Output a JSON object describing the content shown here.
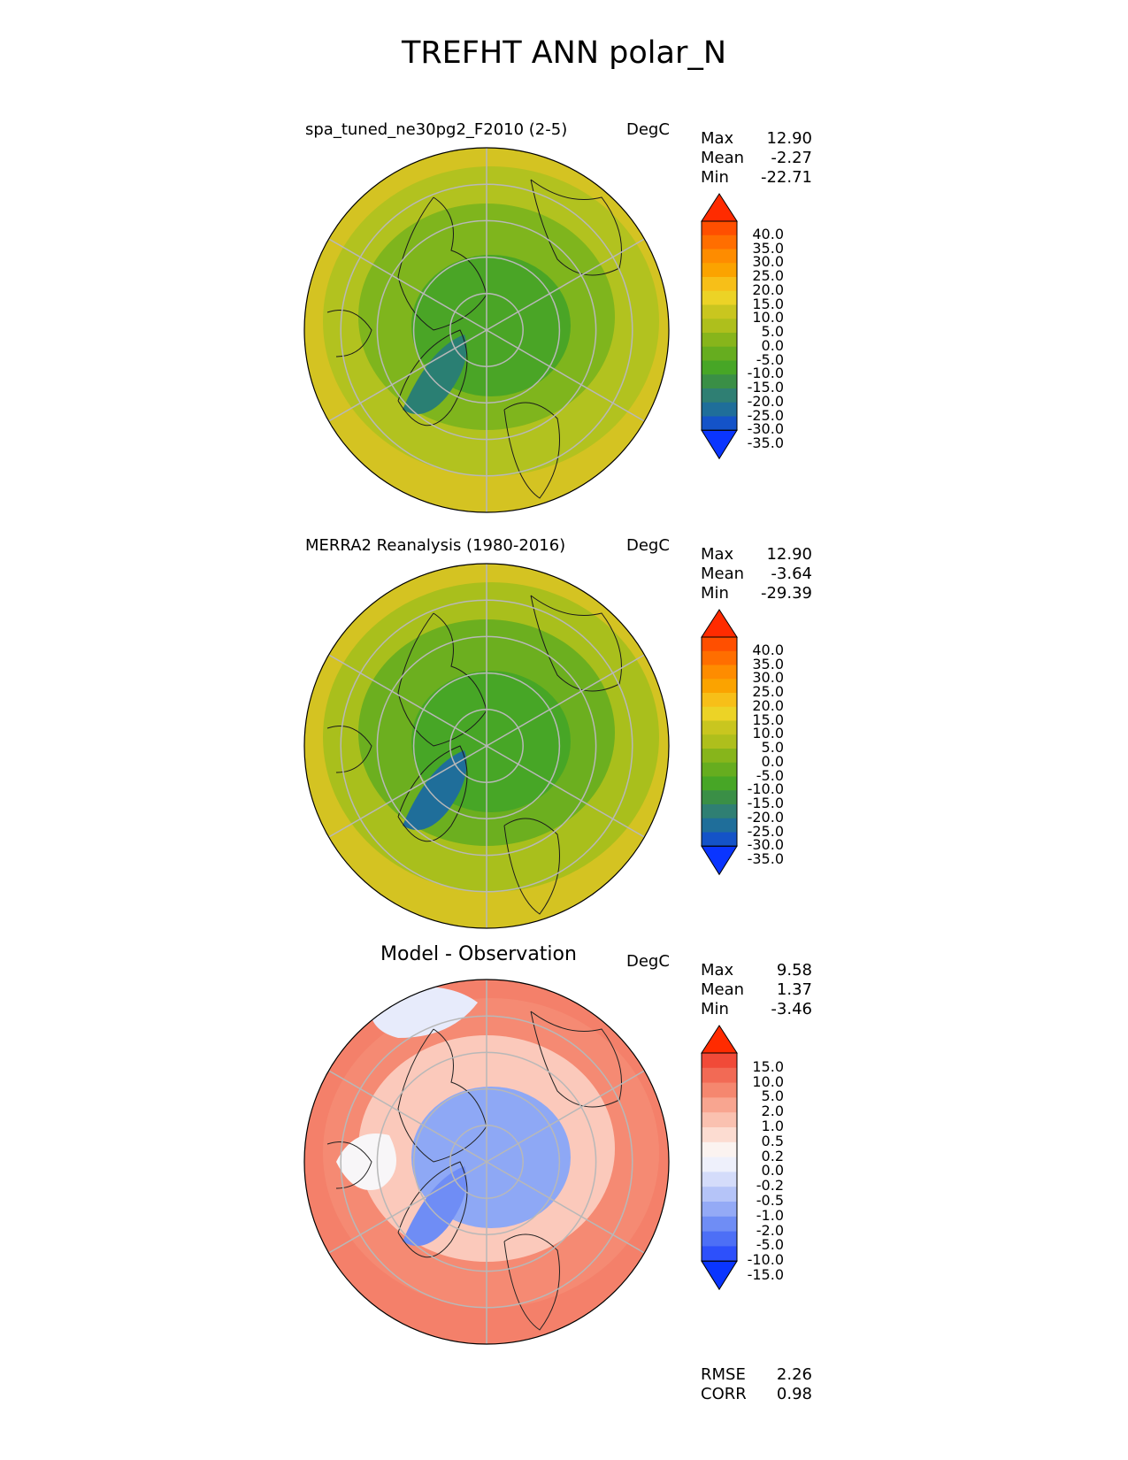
{
  "title": "TREFHT ANN polar_N",
  "panels": [
    {
      "id": "test",
      "title": "spa_tuned_ne30pg2_F2010 (2-5)",
      "units": "DegC",
      "stats": [
        {
          "label": "Max",
          "value": "12.90"
        },
        {
          "label": "Mean",
          "value": "-2.27"
        },
        {
          "label": "Min",
          "value": "-22.71"
        }
      ],
      "colorbar": {
        "labels": [
          "40.0",
          "35.0",
          "30.0",
          "25.0",
          "20.0",
          "15.0",
          "10.0",
          "5.0",
          "0.0",
          "-5.0",
          "-10.0",
          "-15.0",
          "-20.0",
          "-25.0",
          "-30.0",
          "-35.0"
        ],
        "colors": [
          "#ff2b00",
          "#ff4f00",
          "#ff6e00",
          "#fe8c00",
          "#fba300",
          "#f7bf18",
          "#ecd326",
          "#c9c61f",
          "#aebf1c",
          "#87b51b",
          "#66ad1f",
          "#47a626",
          "#3a8f46",
          "#2f7f73",
          "#1f6e9a",
          "#1453c8",
          "#0a35ff"
        ]
      },
      "map": {
        "outer": "#d4c322",
        "mid": "#b2c21f",
        "inner": "#7fb51d",
        "core": "#4aa526",
        "cold": "#2a7f73"
      }
    },
    {
      "id": "reference",
      "title": "MERRA2 Reanalysis (1980-2016)",
      "units": "DegC",
      "stats": [
        {
          "label": "Max",
          "value": "12.90"
        },
        {
          "label": "Mean",
          "value": "-3.64"
        },
        {
          "label": "Min",
          "value": "-29.39"
        }
      ],
      "colorbar": {
        "labels": [
          "40.0",
          "35.0",
          "30.0",
          "25.0",
          "20.0",
          "15.0",
          "10.0",
          "5.0",
          "0.0",
          "-5.0",
          "-10.0",
          "-15.0",
          "-20.0",
          "-25.0",
          "-30.0",
          "-35.0"
        ],
        "colors": [
          "#ff2b00",
          "#ff4f00",
          "#ff6e00",
          "#fe8c00",
          "#fba300",
          "#f7bf18",
          "#ecd326",
          "#c9c61f",
          "#aebf1c",
          "#87b51b",
          "#66ad1f",
          "#47a626",
          "#3a8f46",
          "#2f7f73",
          "#1f6e9a",
          "#1453c8",
          "#0a35ff"
        ]
      },
      "map": {
        "outer": "#d4c322",
        "mid": "#a9bf1c",
        "inner": "#6caf1f",
        "core": "#47a626",
        "cold": "#1f6e9a"
      }
    },
    {
      "id": "diff",
      "title": "Model - Observation",
      "units": "DegC",
      "stats": [
        {
          "label": "Max",
          "value": "9.58"
        },
        {
          "label": "Mean",
          "value": "1.37"
        },
        {
          "label": "Min",
          "value": "-3.46"
        }
      ],
      "colorbar": {
        "labels": [
          "15.0",
          "10.0",
          "5.0",
          "2.0",
          "1.0",
          "0.5",
          "0.2",
          "0.0",
          "-0.2",
          "-0.5",
          "-1.0",
          "-2.0",
          "-5.0",
          "-10.0",
          "-15.0"
        ],
        "colors": [
          "#ff2b00",
          "#f14a38",
          "#f26a55",
          "#f5876f",
          "#f8a590",
          "#fac1b0",
          "#fcdcd1",
          "#fbf3f0",
          "#eef0fb",
          "#d4dcfa",
          "#b5c4f8",
          "#94aaf6",
          "#6f8df5",
          "#4d6ff6",
          "#2d50fb",
          "#0a35ff"
        ]
      },
      "map": {
        "outer": "#f4806a",
        "mid": "#f58a73",
        "inner": "#fbc9bb",
        "core": "#8ea8f5",
        "cold": "#6f8df5"
      },
      "metrics": [
        {
          "label": "RMSE",
          "value": "2.26"
        },
        {
          "label": "CORR",
          "value": "0.98"
        }
      ]
    }
  ]
}
